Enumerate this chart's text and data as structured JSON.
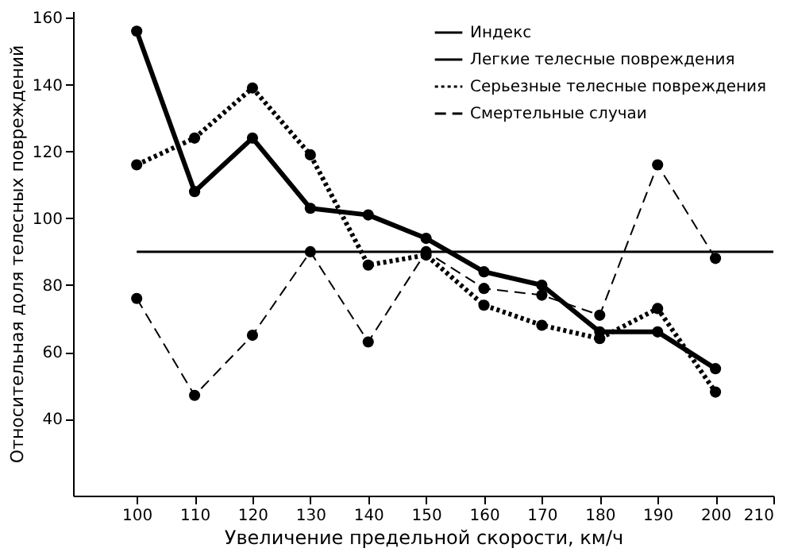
{
  "chart_data": {
    "type": "line",
    "xlabel": "Увеличение предельной скорости, км/ч",
    "ylabel": "Относительная доля телесных повреждений",
    "x": [
      100,
      110,
      120,
      130,
      140,
      150,
      160,
      170,
      180,
      190,
      200
    ],
    "xlim": [
      89,
      210
    ],
    "xticks": [
      100,
      110,
      120,
      130,
      140,
      150,
      160,
      170,
      180,
      190,
      200,
      210
    ],
    "ylim": [
      17,
      162
    ],
    "yticks": [
      40,
      60,
      80,
      100,
      120,
      140,
      160
    ],
    "grid": false,
    "legend": "top right",
    "series": [
      {
        "name": "Индекс",
        "color": "#000000",
        "x": [
          100,
          210
        ],
        "values": [
          90,
          90
        ],
        "line_style": "solid",
        "marker": "none"
      },
      {
        "name": "Легкие телесные повреждения",
        "color": "#000000",
        "values": [
          156,
          108,
          124,
          103,
          101,
          94,
          84,
          80,
          66,
          66,
          55
        ],
        "line_style": "solid",
        "marker": "circle"
      },
      {
        "name": "Серьезные телесные повреждения",
        "color": "#000000",
        "values": [
          116,
          124,
          139,
          119,
          86,
          89,
          74,
          68,
          64,
          73,
          48
        ],
        "line_style": "dotted",
        "marker": "circle"
      },
      {
        "name": "Смертельные случаи",
        "color": "#000000",
        "values": [
          76,
          47,
          65,
          90,
          63,
          90,
          79,
          77,
          71,
          116,
          88
        ],
        "line_style": "dashed",
        "marker": "circle"
      }
    ]
  }
}
